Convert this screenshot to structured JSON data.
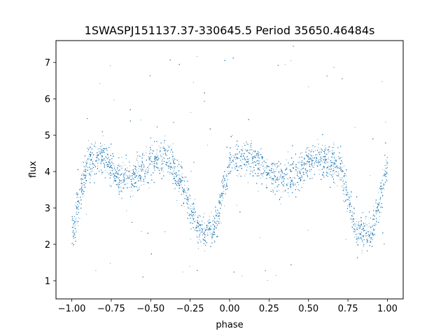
{
  "chart_data": {
    "type": "scatter",
    "title": "1SWASPJ151137.37-330645.5 Period 35650.46484s",
    "xlabel": "phase",
    "ylabel": "flux",
    "xlim": [
      -1.1,
      1.1
    ],
    "ylim": [
      0.5,
      7.6
    ],
    "xticks": [
      -1.0,
      -0.75,
      -0.5,
      -0.25,
      0.0,
      0.25,
      0.5,
      0.75,
      1.0
    ],
    "xtick_labels": [
      "−1.00",
      "−0.75",
      "−0.50",
      "−0.25",
      "0.00",
      "0.25",
      "0.50",
      "0.75",
      "1.00"
    ],
    "yticks": [
      1,
      2,
      3,
      4,
      5,
      6,
      7
    ],
    "ytick_labels": [
      "1",
      "2",
      "3",
      "4",
      "5",
      "6",
      "7"
    ],
    "grid": false,
    "marker_color": "#1f77b4",
    "series": [
      {
        "phase": [
          -1.0,
          -0.9,
          -0.8,
          -0.7,
          -0.6,
          -0.5,
          -0.4,
          -0.3,
          -0.2,
          -0.1,
          0.0,
          0.1,
          0.2,
          0.3,
          0.4,
          0.5,
          0.6,
          0.7,
          0.8,
          0.9,
          1.0
        ],
        "flux": [
          2.3,
          4.3,
          4.4,
          3.8,
          3.9,
          4.3,
          4.4,
          3.6,
          2.4,
          2.4,
          4.3,
          4.4,
          4.2,
          3.8,
          3.9,
          4.3,
          4.4,
          4.1,
          2.4,
          2.3,
          4.2
        ]
      }
    ]
  }
}
